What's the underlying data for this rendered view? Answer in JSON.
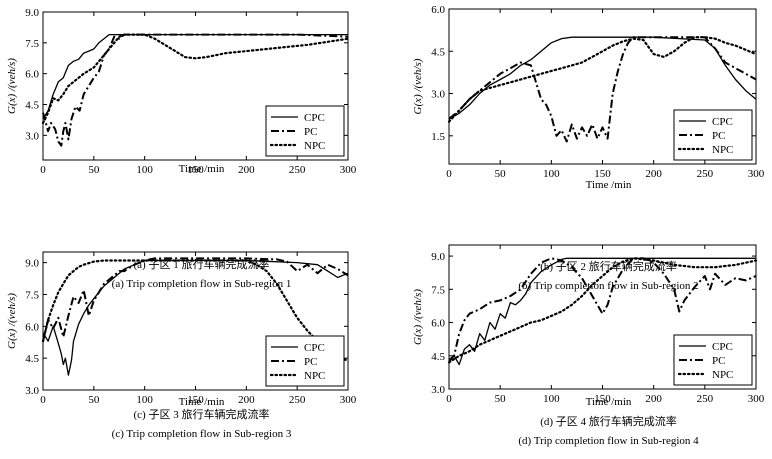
{
  "chart_data": [
    {
      "type": "line",
      "caption_cn": "(a) 子区 1 旅行车辆完成流率",
      "caption_en": "(a) Trip completion flow in Sub-region 1",
      "xlabel": "Time /min",
      "ylabel": "G(x) /(veh/s)",
      "xlim": [
        0,
        300
      ],
      "ylim": [
        1.8,
        9.0
      ],
      "xticks": [
        0,
        50,
        100,
        150,
        200,
        250,
        300
      ],
      "yticks": [
        3.0,
        4.5,
        6.0,
        7.5,
        9.0
      ],
      "legend_position": "bottom-right",
      "series": [
        {
          "name": "CPC",
          "style": "solid",
          "x": [
            0,
            5,
            10,
            15,
            20,
            25,
            30,
            35,
            40,
            45,
            50,
            55,
            60,
            65,
            70,
            80,
            100,
            150,
            200,
            250,
            300
          ],
          "y": [
            3.8,
            4.2,
            5.0,
            5.6,
            5.8,
            6.4,
            6.6,
            6.7,
            7.0,
            7.1,
            7.2,
            7.5,
            7.7,
            7.9,
            7.9,
            7.9,
            7.9,
            7.9,
            7.9,
            7.9,
            7.9
          ]
        },
        {
          "name": "PC",
          "style": "dashed",
          "x": [
            0,
            5,
            8,
            12,
            15,
            18,
            20,
            22,
            25,
            28,
            32,
            36,
            40,
            45,
            50,
            55,
            60,
            65,
            70,
            75,
            80,
            90,
            100,
            150,
            200,
            250,
            300
          ],
          "y": [
            4.1,
            3.2,
            3.6,
            3.3,
            2.7,
            2.5,
            3.2,
            3.6,
            2.8,
            3.8,
            4.4,
            4.2,
            5.0,
            5.4,
            5.8,
            6.1,
            6.9,
            7.2,
            7.8,
            7.7,
            7.9,
            7.9,
            7.9,
            7.9,
            7.9,
            7.9,
            7.8
          ]
        },
        {
          "name": "NPC",
          "style": "dotted",
          "x": [
            0,
            5,
            10,
            15,
            20,
            25,
            30,
            40,
            50,
            60,
            70,
            75,
            80,
            90,
            100,
            110,
            120,
            130,
            140,
            150,
            160,
            170,
            180,
            200,
            220,
            240,
            260,
            280,
            300
          ],
          "y": [
            3.6,
            4.1,
            4.8,
            4.7,
            5.0,
            5.4,
            5.6,
            6.0,
            6.3,
            6.9,
            7.5,
            7.8,
            7.9,
            7.9,
            7.9,
            7.7,
            7.4,
            7.1,
            6.8,
            6.75,
            6.8,
            6.9,
            7.0,
            7.1,
            7.2,
            7.3,
            7.4,
            7.55,
            7.7
          ]
        }
      ]
    },
    {
      "type": "line",
      "caption_cn": "(b) 子区 2 旅行车辆完成流率",
      "caption_en": "(b) Trip completion flow in Sub-region 2",
      "xlabel": "Time /min",
      "ylabel": "G(x) /(veh/s)",
      "xlim": [
        0,
        300
      ],
      "ylim": [
        0.5,
        6.0
      ],
      "xticks": [
        0,
        50,
        100,
        150,
        200,
        250,
        300
      ],
      "yticks": [
        1.5,
        3.0,
        4.5,
        6.0
      ],
      "legend_position": "bottom-right",
      "series": [
        {
          "name": "CPC",
          "style": "solid",
          "x": [
            0,
            10,
            20,
            30,
            40,
            50,
            60,
            70,
            80,
            90,
            100,
            110,
            120,
            150,
            200,
            250,
            260,
            270,
            280,
            290,
            300
          ],
          "y": [
            2.1,
            2.3,
            2.6,
            3.0,
            3.3,
            3.5,
            3.7,
            4.0,
            4.2,
            4.5,
            4.8,
            4.95,
            5.0,
            5.0,
            5.0,
            4.9,
            4.6,
            4.0,
            3.5,
            3.1,
            2.8
          ]
        },
        {
          "name": "PC",
          "style": "dashed",
          "x": [
            0,
            10,
            20,
            30,
            40,
            50,
            60,
            70,
            80,
            85,
            90,
            95,
            100,
            105,
            110,
            115,
            120,
            125,
            130,
            135,
            140,
            145,
            150,
            155,
            160,
            165,
            170,
            175,
            180,
            200,
            250,
            260,
            270,
            280,
            290,
            300
          ],
          "y": [
            2.1,
            2.4,
            2.8,
            3.1,
            3.4,
            3.7,
            3.9,
            4.1,
            4.0,
            3.4,
            2.8,
            2.6,
            2.2,
            1.5,
            1.7,
            1.3,
            1.9,
            1.4,
            1.8,
            1.5,
            1.9,
            1.4,
            1.8,
            1.4,
            3.0,
            3.8,
            4.4,
            4.8,
            5.0,
            5.0,
            5.0,
            4.6,
            4.1,
            3.9,
            3.7,
            3.5
          ]
        },
        {
          "name": "NPC",
          "style": "dotted",
          "x": [
            0,
            10,
            20,
            30,
            40,
            50,
            60,
            70,
            80,
            90,
            100,
            110,
            120,
            130,
            140,
            150,
            160,
            170,
            180,
            190,
            200,
            210,
            220,
            230,
            240,
            250,
            260,
            270,
            280,
            290,
            300
          ],
          "y": [
            2.0,
            2.4,
            2.8,
            3.1,
            3.2,
            3.3,
            3.4,
            3.5,
            3.6,
            3.7,
            3.8,
            3.9,
            4.0,
            4.1,
            4.3,
            4.5,
            4.7,
            4.85,
            4.95,
            4.9,
            4.4,
            4.3,
            4.5,
            4.8,
            5.0,
            5.0,
            4.95,
            4.8,
            4.7,
            4.55,
            4.4
          ]
        }
      ]
    },
    {
      "type": "line",
      "caption_cn": "(c) 子区 3 旅行车辆完成流率",
      "caption_en": "(c) Trip completion flow in Sub-region 3",
      "xlabel": "Time /min",
      "ylabel": "G(x) /(veh/s)",
      "xlim": [
        0,
        300
      ],
      "ylim": [
        3.0,
        9.5
      ],
      "xticks": [
        0,
        50,
        100,
        150,
        200,
        250,
        300
      ],
      "yticks": [
        3.0,
        4.5,
        6.0,
        7.5,
        9.0
      ],
      "legend_position": "bottom-right",
      "series": [
        {
          "name": "CPC",
          "style": "solid",
          "x": [
            0,
            5,
            10,
            15,
            18,
            20,
            22,
            25,
            28,
            30,
            35,
            40,
            45,
            50,
            55,
            60,
            65,
            70,
            75,
            80,
            90,
            100,
            110,
            150,
            200,
            250,
            270,
            280,
            290,
            300
          ],
          "y": [
            5.7,
            5.3,
            6.0,
            5.2,
            4.7,
            4.2,
            4.5,
            3.7,
            4.4,
            5.3,
            6.1,
            6.6,
            7.0,
            7.3,
            7.6,
            7.9,
            8.1,
            8.3,
            8.5,
            8.7,
            8.9,
            9.1,
            9.1,
            9.1,
            9.1,
            9.0,
            8.9,
            8.6,
            8.3,
            8.5
          ]
        },
        {
          "name": "PC",
          "style": "dashed",
          "x": [
            0,
            5,
            10,
            15,
            20,
            25,
            30,
            35,
            40,
            45,
            50,
            55,
            60,
            65,
            70,
            75,
            80,
            90,
            100,
            110,
            150,
            200,
            230,
            240,
            250,
            260,
            270,
            280,
            290,
            300
          ],
          "y": [
            5.3,
            6.3,
            5.9,
            6.4,
            5.5,
            6.5,
            7.4,
            7.1,
            7.7,
            6.5,
            7.2,
            7.6,
            8.0,
            8.2,
            8.4,
            8.6,
            8.6,
            8.9,
            9.1,
            9.2,
            9.2,
            9.2,
            9.15,
            9.05,
            8.6,
            8.9,
            8.5,
            8.9,
            8.7,
            8.4
          ]
        },
        {
          "name": "NPC",
          "style": "dotted",
          "x": [
            0,
            5,
            10,
            15,
            20,
            25,
            30,
            35,
            40,
            50,
            60,
            70,
            80,
            90,
            100,
            150,
            200,
            210,
            220,
            230,
            240,
            250,
            260,
            270,
            280,
            290,
            300
          ],
          "y": [
            5.3,
            6.3,
            7.0,
            7.6,
            8.0,
            8.4,
            8.6,
            8.8,
            8.9,
            9.05,
            9.1,
            9.1,
            9.1,
            9.1,
            9.1,
            9.1,
            9.1,
            8.9,
            8.6,
            8.0,
            7.2,
            6.4,
            5.8,
            5.3,
            4.9,
            4.5,
            4.4
          ]
        }
      ]
    },
    {
      "type": "line",
      "caption_cn": "(d) 子区 4 旅行车辆完成流率",
      "caption_en": "(d) Trip completion flow in Sub-region 4",
      "xlabel": "Time /min",
      "ylabel": "G(x) /(veh/s)",
      "xlim": [
        0,
        300
      ],
      "ylim": [
        3.0,
        9.5
      ],
      "xticks": [
        0,
        50,
        100,
        150,
        200,
        250,
        300
      ],
      "yticks": [
        3.0,
        4.5,
        6.0,
        7.5,
        9.0
      ],
      "legend_position": "bottom-right",
      "series": [
        {
          "name": "CPC",
          "style": "solid",
          "x": [
            0,
            5,
            10,
            15,
            20,
            25,
            30,
            35,
            40,
            45,
            50,
            55,
            60,
            65,
            70,
            75,
            80,
            90,
            100,
            110,
            115,
            150,
            200,
            250,
            300
          ],
          "y": [
            4.2,
            4.5,
            4.1,
            4.8,
            5.0,
            4.7,
            5.5,
            5.2,
            6.0,
            5.7,
            6.4,
            6.2,
            6.9,
            6.8,
            7.0,
            7.3,
            7.8,
            8.3,
            8.6,
            8.85,
            8.9,
            8.9,
            8.9,
            8.9,
            8.9
          ]
        },
        {
          "name": "PC",
          "style": "dashed",
          "x": [
            0,
            5,
            10,
            15,
            20,
            30,
            40,
            50,
            60,
            70,
            80,
            90,
            100,
            110,
            120,
            130,
            140,
            150,
            155,
            160,
            170,
            180,
            190,
            200,
            210,
            220,
            225,
            230,
            240,
            250,
            255,
            260,
            270,
            280,
            290,
            300
          ],
          "y": [
            4.3,
            4.5,
            5.5,
            6.1,
            6.4,
            6.6,
            6.9,
            7.0,
            7.2,
            7.5,
            8.2,
            8.7,
            8.9,
            8.8,
            8.5,
            8.0,
            7.2,
            6.4,
            6.8,
            7.6,
            8.4,
            8.9,
            8.9,
            8.7,
            8.2,
            7.5,
            6.5,
            7.0,
            7.6,
            8.1,
            7.5,
            8.2,
            7.7,
            8.0,
            7.9,
            8.1
          ]
        },
        {
          "name": "NPC",
          "style": "dotted",
          "x": [
            0,
            10,
            20,
            30,
            40,
            50,
            60,
            70,
            80,
            90,
            100,
            110,
            120,
            130,
            140,
            150,
            160,
            170,
            180,
            190,
            200,
            210,
            220,
            230,
            240,
            250,
            260,
            270,
            280,
            290,
            300
          ],
          "y": [
            4.2,
            4.5,
            4.7,
            5.0,
            5.2,
            5.4,
            5.6,
            5.8,
            6.0,
            6.1,
            6.3,
            6.5,
            6.8,
            7.2,
            7.7,
            8.1,
            8.5,
            8.75,
            8.9,
            8.85,
            8.8,
            8.7,
            8.6,
            8.55,
            8.5,
            8.5,
            8.5,
            8.55,
            8.6,
            8.7,
            8.8
          ]
        }
      ]
    }
  ]
}
